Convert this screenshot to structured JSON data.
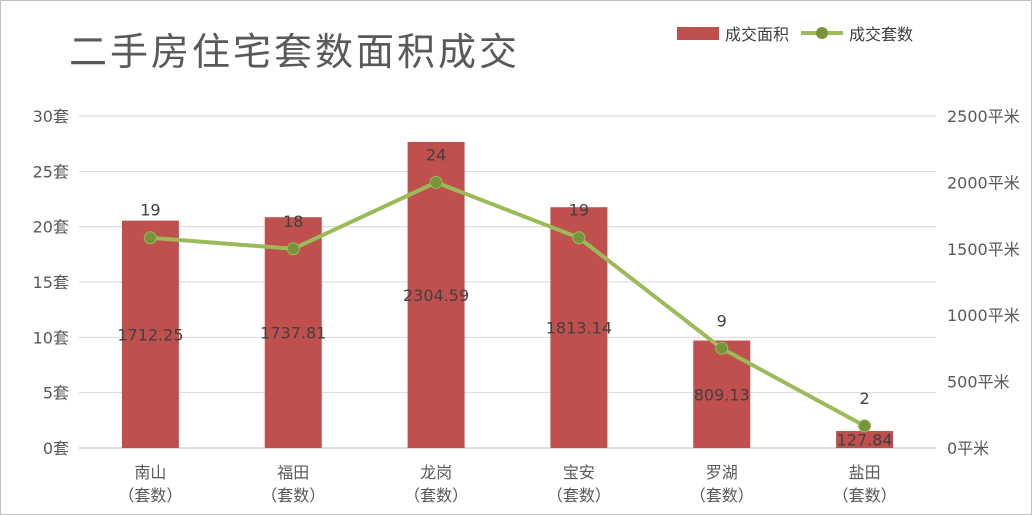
{
  "chart_data": {
    "type": "bar",
    "title": "二手房住宅套数面积成交",
    "categories": [
      {
        "line1": "南山",
        "line2": "（套数）"
      },
      {
        "line1": "福田",
        "line2": "（套数）"
      },
      {
        "line1": "龙岗",
        "line2": "（套数）"
      },
      {
        "line1": "宝安",
        "line2": "（套数）"
      },
      {
        "line1": "罗湖",
        "line2": "（套数）"
      },
      {
        "line1": "盐田",
        "line2": "（套数）"
      }
    ],
    "series": [
      {
        "name": "成交面积",
        "kind": "bar",
        "axis": "right",
        "color": "#C0504D",
        "values": [
          1712.25,
          1737.81,
          2304.59,
          1813.14,
          809.13,
          127.84
        ],
        "labels": [
          "1712.25",
          "1737.81",
          "2304.59",
          "1813.14",
          "809.13",
          "127.84"
        ]
      },
      {
        "name": "成交套数",
        "kind": "line",
        "axis": "left",
        "color": "#9BBB59",
        "marker_color": "#77933C",
        "values": [
          19,
          18,
          24,
          19,
          9,
          2
        ],
        "labels": [
          "19",
          "18",
          "24",
          "19",
          "9",
          "2"
        ]
      }
    ],
    "y_left": {
      "min": 0,
      "max": 30,
      "ticks": [
        "0套",
        "5套",
        "10套",
        "15套",
        "20套",
        "25套",
        "30套"
      ]
    },
    "y_right": {
      "min": 0,
      "max": 2500,
      "ticks": [
        "0平米",
        "500平米",
        "1000平米",
        "1500平米",
        "2000平米",
        "2500平米"
      ]
    },
    "grid": true,
    "legend": "top-right"
  }
}
